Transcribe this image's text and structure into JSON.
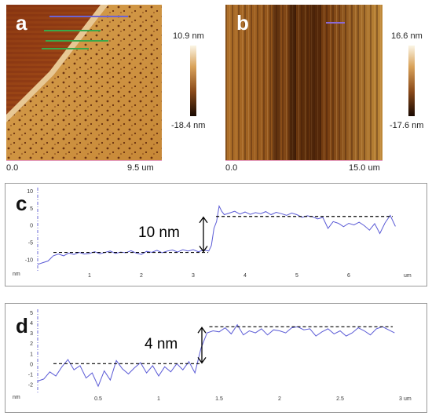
{
  "figure": {
    "panel_a": {
      "letter": "a",
      "scale_max": "10.9 nm",
      "scale_min": "-18.4 nm",
      "axis_start": "0.0",
      "axis_end": "9.5 um"
    },
    "panel_b": {
      "letter": "b",
      "scale_max": "16.6 nm",
      "scale_min": "-17.6 nm",
      "axis_start": "0.0",
      "axis_end": "15.0 um"
    },
    "panel_c": {
      "letter": "c",
      "step_label": "10 nm"
    },
    "panel_d": {
      "letter": "d",
      "step_label": "4 nm"
    }
  },
  "chart_data": [
    {
      "type": "line",
      "panel": "c",
      "xlabel": "um",
      "ylabel": "nm",
      "xlim": [
        0,
        7
      ],
      "ylim": [
        -12,
        10
      ],
      "x_ticks": [
        "1",
        "2",
        "3",
        "4",
        "5",
        "6"
      ],
      "y_ticks": [
        "10",
        "5",
        "0",
        "-5",
        "-10"
      ],
      "x": [
        0.0,
        0.1,
        0.2,
        0.3,
        0.4,
        0.5,
        0.6,
        0.7,
        0.8,
        0.9,
        1.0,
        1.1,
        1.2,
        1.3,
        1.4,
        1.5,
        1.6,
        1.7,
        1.8,
        1.9,
        2.0,
        2.1,
        2.2,
        2.3,
        2.4,
        2.5,
        2.6,
        2.7,
        2.8,
        2.9,
        3.0,
        3.1,
        3.2,
        3.3,
        3.35,
        3.4,
        3.45,
        3.5,
        3.55,
        3.6,
        3.7,
        3.8,
        3.9,
        4.0,
        4.1,
        4.2,
        4.3,
        4.4,
        4.5,
        4.6,
        4.7,
        4.8,
        4.9,
        5.0,
        5.1,
        5.2,
        5.3,
        5.4,
        5.5,
        5.6,
        5.7,
        5.8,
        5.9,
        6.0,
        6.1,
        6.2,
        6.3,
        6.4,
        6.5,
        6.6,
        6.7,
        6.8,
        6.9
      ],
      "y": [
        -11.5,
        -11,
        -10.5,
        -9,
        -8.5,
        -9,
        -8.2,
        -8.6,
        -8,
        -8.5,
        -8.3,
        -7.8,
        -8.4,
        -8,
        -7.6,
        -8.3,
        -7.9,
        -8.1,
        -7.5,
        -8.2,
        -8.6,
        -7.7,
        -8,
        -7.4,
        -8.1,
        -7.6,
        -7.3,
        -7.9,
        -7.2,
        -7.6,
        -7.2,
        -7.8,
        -7.3,
        -7.6,
        -6,
        -1,
        1,
        5.5,
        4,
        3,
        3.5,
        4,
        3.2,
        3.8,
        3.1,
        3.6,
        3.3,
        3.9,
        3,
        3.7,
        3.3,
        2.8,
        3.5,
        3,
        2.2,
        2.7,
        2.4,
        1.8,
        2.2,
        -1,
        1,
        0.5,
        -0.5,
        0.5,
        0,
        0.8,
        -0.2,
        -1.5,
        0.4,
        -2.5,
        0.6,
        2.8,
        -0.4
      ],
      "annotations": [
        {
          "text": "10 nm",
          "lower_level": -8,
          "upper_level": 2.5
        }
      ]
    },
    {
      "type": "line",
      "panel": "d",
      "xlabel": "um",
      "ylabel": "nm",
      "xlim": [
        0,
        3
      ],
      "ylim": [
        -2.5,
        5
      ],
      "x_ticks": [
        "0.5",
        "1",
        "1.5",
        "2",
        "2.5",
        "3"
      ],
      "y_ticks": [
        "5",
        "4",
        "3",
        "2",
        "1",
        "0",
        "-1",
        "-2"
      ],
      "x": [
        0.0,
        0.05,
        0.1,
        0.15,
        0.2,
        0.25,
        0.3,
        0.35,
        0.4,
        0.45,
        0.5,
        0.55,
        0.6,
        0.65,
        0.7,
        0.75,
        0.8,
        0.85,
        0.9,
        0.95,
        1.0,
        1.05,
        1.1,
        1.15,
        1.2,
        1.25,
        1.3,
        1.35,
        1.4,
        1.45,
        1.5,
        1.55,
        1.6,
        1.65,
        1.7,
        1.75,
        1.8,
        1.85,
        1.9,
        1.95,
        2.0,
        2.05,
        2.1,
        2.15,
        2.2,
        2.25,
        2.3,
        2.35,
        2.4,
        2.45,
        2.5,
        2.55,
        2.6,
        2.65,
        2.7,
        2.75,
        2.8,
        2.85,
        2.9,
        2.95
      ],
      "y": [
        -1.7,
        -1.5,
        -0.8,
        -1.2,
        -0.3,
        0.4,
        -0.6,
        -0.2,
        -1.4,
        -0.9,
        -2.2,
        -0.7,
        -1.6,
        0.3,
        -0.5,
        -1.0,
        -0.4,
        0.1,
        -0.9,
        -0.2,
        -1.2,
        -0.3,
        -0.8,
        0.0,
        -0.6,
        0.2,
        -0.9,
        1.5,
        3.0,
        3.2,
        3.1,
        3.5,
        2.9,
        3.8,
        2.8,
        3.2,
        3.0,
        3.4,
        2.8,
        3.3,
        3.2,
        3.0,
        3.5,
        3.6,
        3.3,
        3.4,
        2.7,
        3.1,
        3.4,
        2.9,
        3.2,
        2.7,
        3.0,
        3.5,
        3.2,
        2.8,
        3.4,
        3.6,
        3.3,
        3.0
      ],
      "annotations": [
        {
          "text": "4 nm",
          "lower_level": 0,
          "upper_level": 3.6
        }
      ]
    }
  ]
}
